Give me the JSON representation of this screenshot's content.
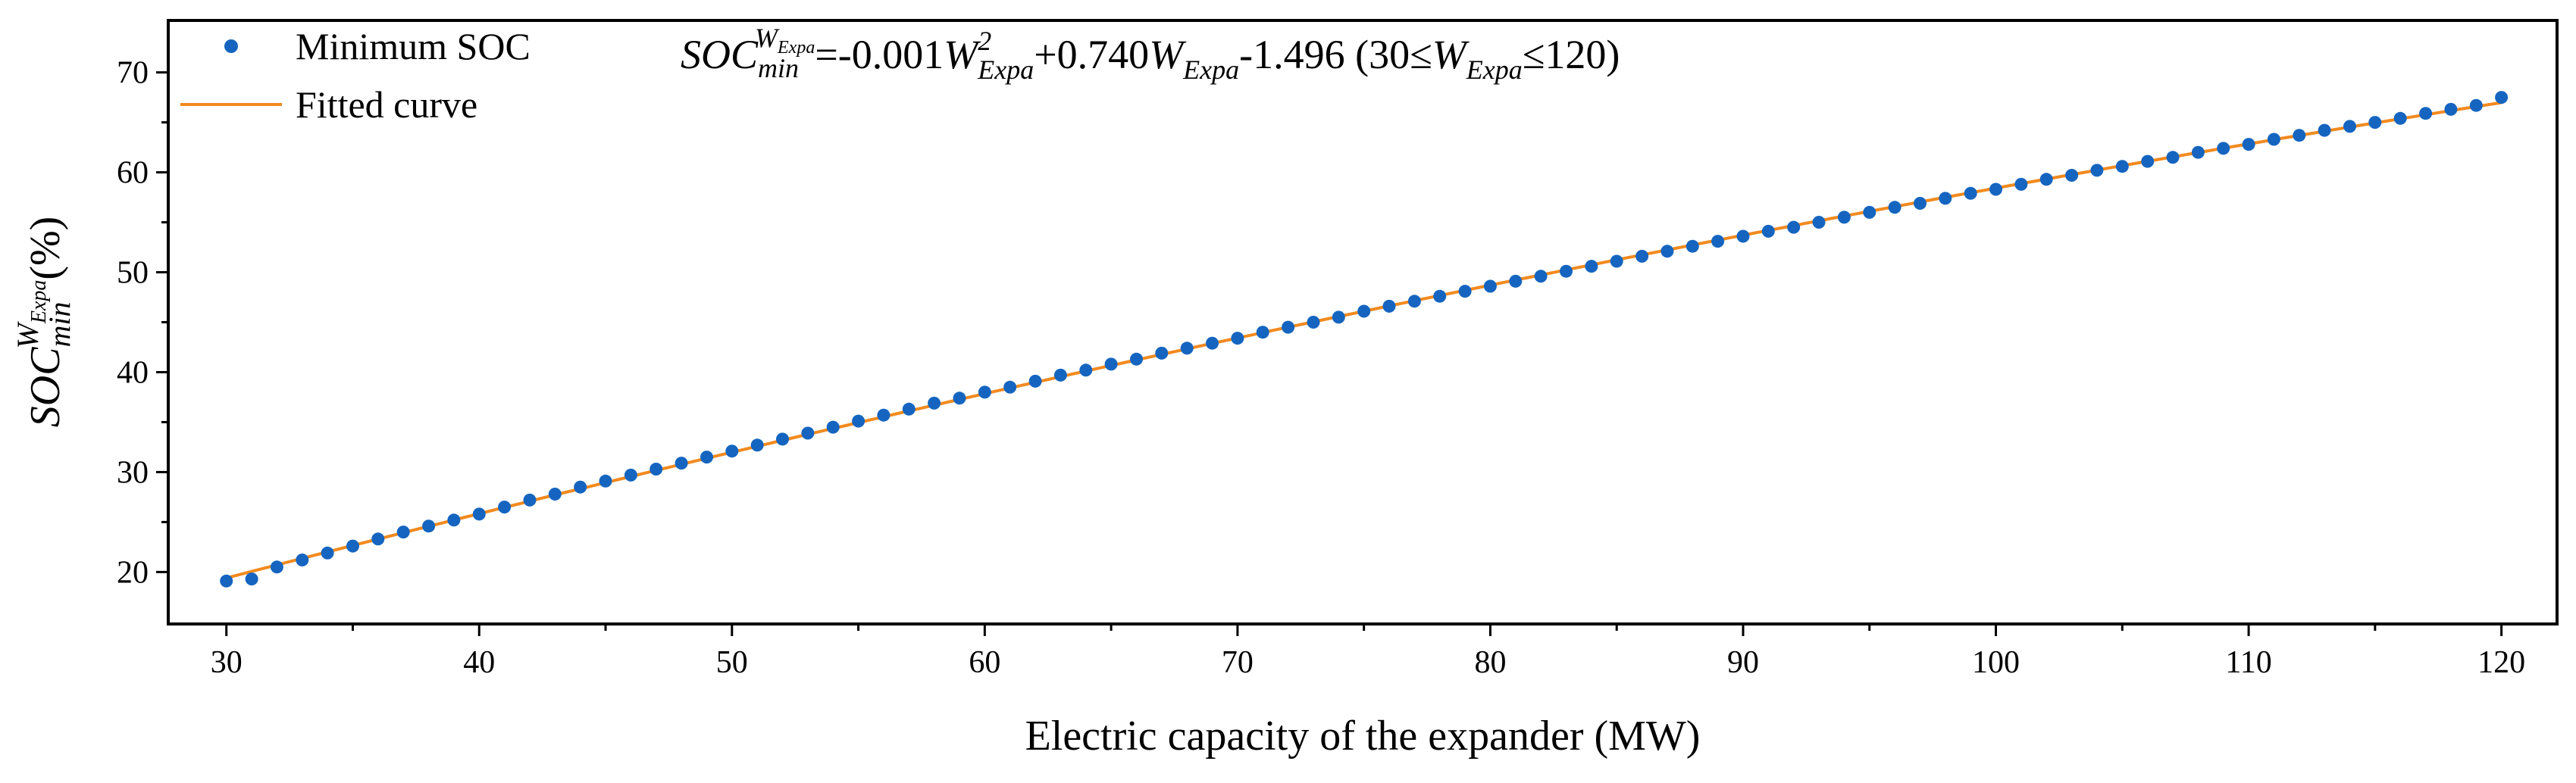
{
  "chart_data": {
    "type": "scatter",
    "xlabel": "Electric capacity of the expander (MW)",
    "ylabel": {
      "base": "SOC",
      "sub": "min",
      "sup": "W",
      "supsub": "Expa",
      "suffix": "(%)"
    },
    "xlim": [
      27.7,
      122.2
    ],
    "ylim": [
      14.8,
      75.2
    ],
    "x_ticks": [
      30,
      40,
      50,
      60,
      70,
      80,
      90,
      100,
      110,
      120
    ],
    "y_ticks": [
      20,
      30,
      40,
      50,
      60,
      70
    ],
    "legend": {
      "position": "top-left",
      "entries": [
        {
          "label": "Minimum SOC",
          "marker": "dot"
        },
        {
          "label": "Fitted curve",
          "marker": "line"
        }
      ]
    },
    "equation": {
      "lhs_base": "SOC",
      "lhs_sub": "min",
      "lhs_sup": "W",
      "lhs_supsub": "Expa",
      "eq_a": "=-0.001",
      "eq_w1": "W",
      "eq_sq": "2",
      "eq_sub1": "Expa",
      "eq_b": "+0.740",
      "eq_w2": "W",
      "eq_sub2": "Expa",
      "eq_c": "-1.496 (30≤",
      "eq_w3": "W",
      "eq_sub3": "Expa",
      "eq_d": "≤120)"
    },
    "fit": {
      "a": -0.001,
      "b": 0.74,
      "c": -1.496,
      "x_from": 30,
      "x_to": 120
    },
    "series": [
      {
        "name": "Minimum SOC",
        "x": [
          30,
          31,
          32,
          33,
          34,
          35,
          36,
          37,
          38,
          39,
          40,
          41,
          42,
          43,
          44,
          45,
          46,
          47,
          48,
          49,
          50,
          51,
          52,
          53,
          54,
          55,
          56,
          57,
          58,
          59,
          60,
          61,
          62,
          63,
          64,
          65,
          66,
          67,
          68,
          69,
          70,
          71,
          72,
          73,
          74,
          75,
          76,
          77,
          78,
          79,
          80,
          81,
          82,
          83,
          84,
          85,
          86,
          87,
          88,
          89,
          90,
          91,
          92,
          93,
          94,
          95,
          96,
          97,
          98,
          99,
          100,
          101,
          102,
          103,
          104,
          105,
          106,
          107,
          108,
          109,
          110,
          111,
          112,
          113,
          114,
          115,
          116,
          117,
          118,
          119,
          120
        ],
        "y": [
          19.1,
          19.3,
          20.5,
          21.2,
          21.9,
          22.6,
          23.3,
          24.0,
          24.6,
          25.2,
          25.8,
          26.5,
          27.2,
          27.8,
          28.5,
          29.1,
          29.7,
          30.3,
          30.9,
          31.5,
          32.1,
          32.7,
          33.3,
          33.9,
          34.5,
          35.1,
          35.7,
          36.3,
          36.9,
          37.4,
          38.0,
          38.5,
          39.1,
          39.7,
          40.2,
          40.8,
          41.3,
          41.9,
          42.4,
          42.9,
          43.4,
          44.0,
          44.5,
          45.0,
          45.5,
          46.1,
          46.6,
          47.1,
          47.6,
          48.1,
          48.6,
          49.1,
          49.6,
          50.1,
          50.6,
          51.1,
          51.6,
          52.1,
          52.6,
          53.1,
          53.6,
          54.1,
          54.5,
          55.0,
          55.5,
          56.0,
          56.5,
          56.9,
          57.4,
          57.9,
          58.3,
          58.8,
          59.3,
          59.7,
          60.2,
          60.6,
          61.1,
          61.5,
          62.0,
          62.4,
          62.8,
          63.3,
          63.7,
          64.2,
          64.6,
          65.0,
          65.4,
          65.9,
          66.3,
          66.7,
          67.5
        ]
      }
    ]
  }
}
